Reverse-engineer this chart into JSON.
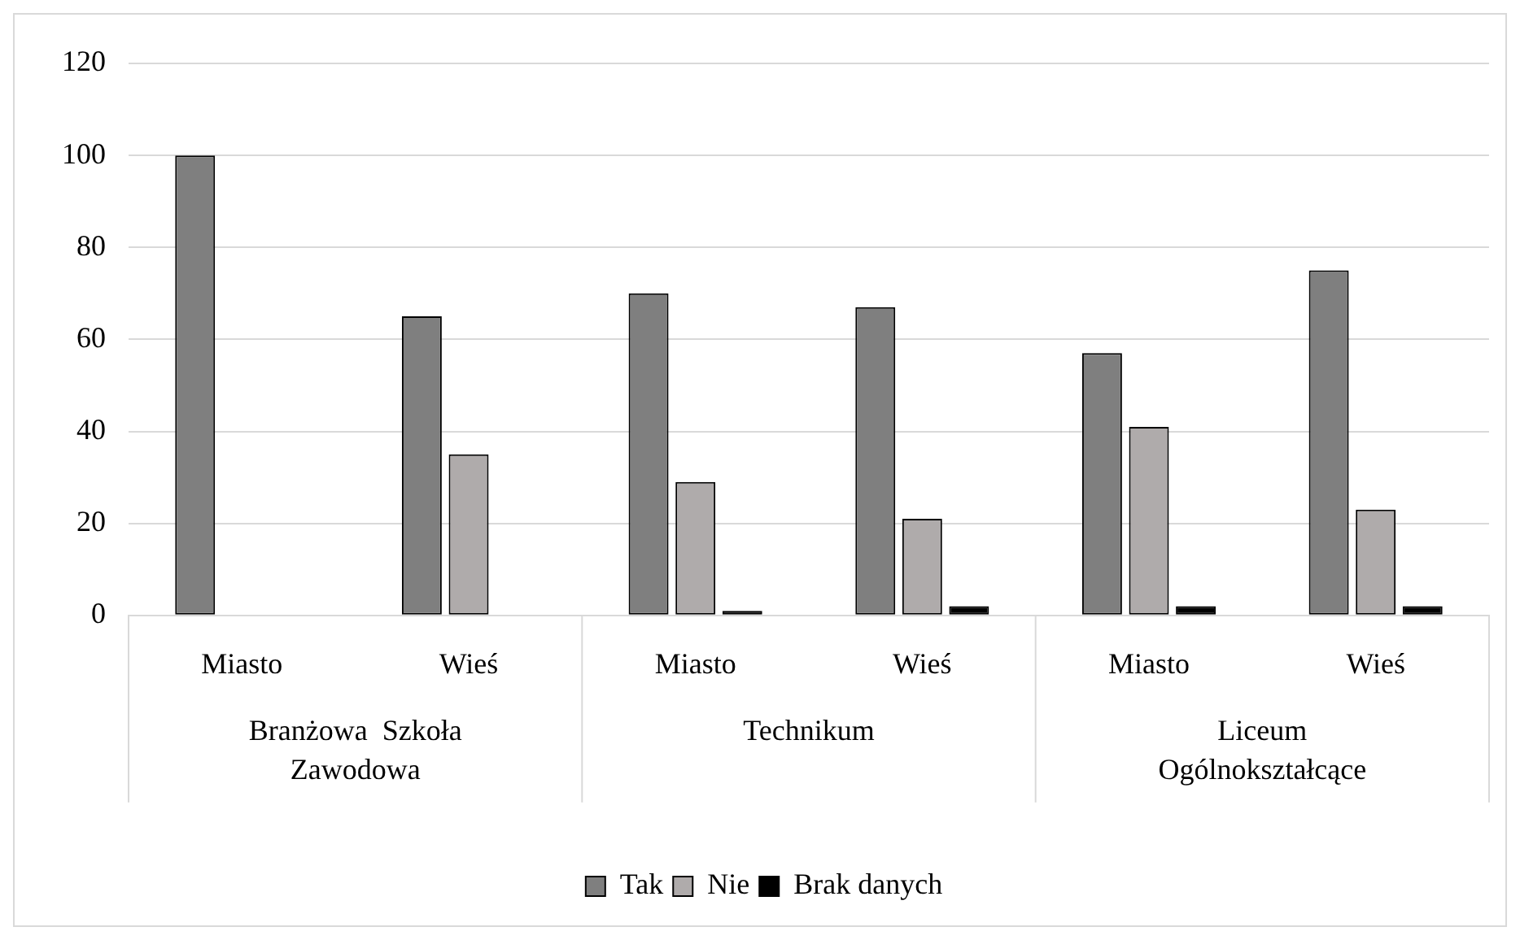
{
  "chart_data": {
    "type": "bar",
    "categories": [
      "Miasto",
      "Wieś",
      "Miasto",
      "Wieś",
      "Miasto",
      "Wieś"
    ],
    "series": [
      {
        "name": "Tak",
        "color": "#7f7f7f",
        "values": [
          100,
          65,
          70,
          67,
          57,
          75
        ]
      },
      {
        "name": "Nie",
        "color": "#afabab",
        "values": [
          0,
          35,
          29,
          21,
          41,
          23
        ]
      },
      {
        "name": "Brak danych",
        "color": "#000000",
        "values": [
          0,
          0,
          1,
          2,
          2,
          2
        ]
      }
    ],
    "annotations": [
      "Branżowa  Szkoła Zawodowa",
      "Technikum",
      "Liceum Ogólnokształcące"
    ],
    "ylim": [
      0,
      120
    ],
    "yticks": [
      0,
      20,
      40,
      60,
      80,
      100,
      120
    ],
    "grid": "y",
    "legend": "bottom"
  }
}
